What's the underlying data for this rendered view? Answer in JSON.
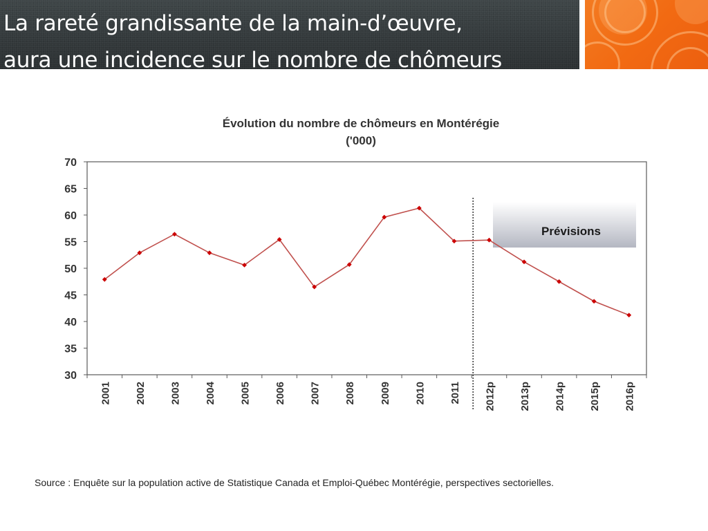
{
  "slide": {
    "title_line1": "La rareté grandissante de la main-d’œuvre,",
    "title_line2": "aura une incidence sur le nombre de chômeurs",
    "source": "Source : Enquête sur la population active de Statistique Canada et Emploi-Québec Montérégie, perspectives sectorielles."
  },
  "colors": {
    "title_bar": "#363c3e",
    "accent_orange": "#f26a12",
    "series_line": "#c0504d",
    "marker": "#cc0000",
    "forecast_box_top": "#ffffff",
    "forecast_box_bottom": "#b4b7c2"
  },
  "chart_data": {
    "type": "line",
    "title": "Évolution du nombre de chômeurs en Montérégie",
    "subtitle": "('000)",
    "xlabel": "",
    "ylabel": "",
    "ylim": [
      30,
      70
    ],
    "yticks": [
      "70",
      "65",
      "60",
      "55",
      "50",
      "45",
      "40",
      "35",
      "30"
    ],
    "categories": [
      "2001",
      "2002",
      "2003",
      "2004",
      "2005",
      "2006",
      "2007",
      "2008",
      "2009",
      "2010",
      "2011",
      "2012p",
      "2013p",
      "2014p",
      "2015p",
      "2016p"
    ],
    "series": [
      {
        "values": [
          47.9,
          52.9,
          56.4,
          52.9,
          50.6,
          55.4,
          46.5,
          50.7,
          59.6,
          61.3,
          55.1,
          55.3,
          51.2,
          47.5,
          43.8,
          41.2
        ]
      }
    ],
    "grid": false,
    "legend": "none",
    "forecast_divider_after": "2011",
    "annotation": "Prévisions"
  }
}
